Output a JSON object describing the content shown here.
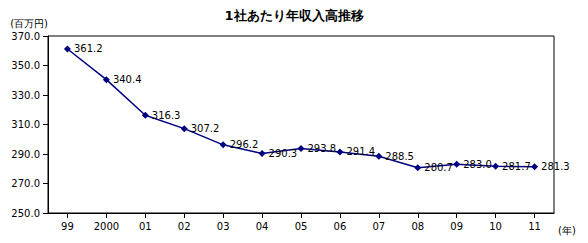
{
  "chart_data": {
    "type": "line",
    "title": "1社あたり年収入高推移",
    "y_label": "(百万円)",
    "x_label": "(年)",
    "categories": [
      "99",
      "2000",
      "01",
      "02",
      "03",
      "04",
      "05",
      "06",
      "07",
      "08",
      "09",
      "10",
      "11"
    ],
    "values": [
      361.2,
      340.4,
      316.3,
      307.2,
      296.2,
      290.3,
      293.8,
      291.4,
      288.5,
      280.7,
      283.0,
      281.7,
      281.3
    ],
    "value_labels": [
      "361.2",
      "340.4",
      "316.3",
      "307.2",
      "296.2",
      "290.3",
      "293.8",
      "291.4",
      "288.5",
      "280.7",
      "283.0",
      "281.7",
      "281.3"
    ],
    "color": "#000080",
    "marker": "diamond",
    "data_labels": true,
    "grid": false,
    "ylim": [
      250,
      370
    ],
    "yticks": [
      {
        "value": 250,
        "label": "250.0"
      },
      {
        "value": 270,
        "label": "270.0"
      },
      {
        "value": 290,
        "label": "290.0"
      },
      {
        "value": 310,
        "label": "310.0"
      },
      {
        "value": 330,
        "label": "330.0"
      },
      {
        "value": 350,
        "label": "350.0"
      },
      {
        "value": 370,
        "label": "370.0"
      }
    ]
  }
}
